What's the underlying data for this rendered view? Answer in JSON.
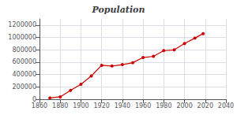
{
  "chart_data": {
    "type": "line",
    "title": "Population",
    "x": [
      1870,
      1880,
      1890,
      1900,
      1910,
      1920,
      1930,
      1940,
      1950,
      1960,
      1970,
      1980,
      1990,
      2000,
      2010,
      2018
    ],
    "values": [
      20595,
      39159,
      142924,
      243329,
      376053,
      548889,
      537606,
      559456,
      591024,
      674767,
      694409,
      786690,
      799065,
      902195,
      989415,
      1062330
    ],
    "color": "#cc0000",
    "marker": "circle",
    "xlim": [
      1860,
      2040
    ],
    "xticks": [
      1860,
      1880,
      1900,
      1920,
      1940,
      1960,
      1980,
      2000,
      2020,
      2040
    ],
    "ylim": [
      0,
      1300000
    ],
    "yticks": [
      0,
      200000,
      400000,
      600000,
      800000,
      1000000,
      1200000
    ],
    "grid": true
  }
}
